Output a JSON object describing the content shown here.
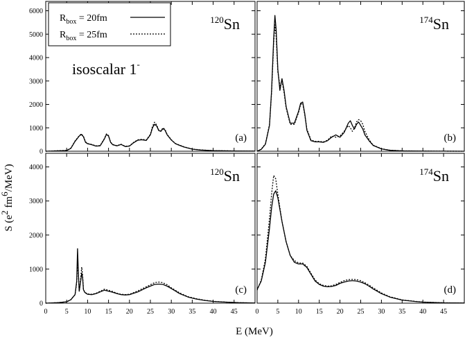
{
  "figure": {
    "xlabel": "E (MeV)",
    "ylabel_main": "S (e",
    "ylabel_sup1": "2",
    "ylabel_mid": " fm",
    "ylabel_sup2": "6",
    "ylabel_end": "/MeV)",
    "annotation": "isoscalar 1",
    "annotation_sup": "-",
    "legend": [
      {
        "prefix": "R",
        "sub": "box",
        "text": " = 20fm",
        "style": "solid"
      },
      {
        "prefix": "R",
        "sub": "box",
        "text": " = 25fm",
        "style": "dotted"
      }
    ],
    "colors": {
      "line": "#000000",
      "background": "#ffffff",
      "frame": "#000000"
    }
  },
  "chart_data": [
    {
      "type": "line",
      "panel_label": "(a)",
      "nucleus": {
        "mass": "120",
        "symbol": "Sn"
      },
      "xlim": [
        0,
        50
      ],
      "ylim": [
        0,
        6400
      ],
      "xticks": [
        "0",
        "5",
        "10",
        "15",
        "20",
        "25",
        "30",
        "35",
        "40",
        "45"
      ],
      "yticks": [
        "0",
        "1000",
        "2000",
        "3000",
        "4000",
        "5000",
        "6000"
      ],
      "show_xtick_labels": false,
      "series": [
        {
          "name": "R_box = 20fm",
          "style": "solid",
          "x": [
            0,
            5,
            6,
            7,
            8,
            8.5,
            9,
            9.5,
            10,
            11,
            12,
            13,
            14,
            14.5,
            15,
            15.5,
            16,
            17,
            18,
            19,
            20,
            21,
            22,
            23,
            24,
            25,
            25.5,
            26,
            26.5,
            27,
            27.5,
            28,
            28.5,
            29,
            30,
            31,
            32,
            33,
            35,
            37,
            40,
            45,
            50
          ],
          "y": [
            0,
            30,
            120,
            420,
            650,
            720,
            620,
            380,
            320,
            280,
            220,
            230,
            520,
            720,
            650,
            380,
            280,
            230,
            290,
            200,
            220,
            360,
            470,
            490,
            460,
            700,
            1000,
            1150,
            1080,
            880,
            850,
            970,
            900,
            700,
            480,
            320,
            250,
            180,
            90,
            50,
            25,
            10,
            5
          ]
        },
        {
          "name": "R_box = 25fm",
          "style": "dotted",
          "x": [
            0,
            5,
            6,
            7,
            8,
            8.5,
            9,
            9.5,
            10,
            11,
            12,
            13,
            14,
            14.5,
            15,
            15.5,
            16,
            17,
            18,
            19,
            20,
            21,
            22,
            23,
            24,
            25,
            25.5,
            26,
            26.5,
            27,
            27.5,
            28,
            28.5,
            29,
            30,
            31,
            32,
            33,
            35,
            37,
            40,
            45,
            50
          ],
          "y": [
            0,
            35,
            130,
            440,
            660,
            740,
            640,
            400,
            330,
            290,
            230,
            240,
            540,
            740,
            670,
            390,
            290,
            240,
            300,
            210,
            230,
            380,
            490,
            510,
            480,
            720,
            1060,
            1240,
            1120,
            900,
            860,
            1000,
            930,
            720,
            490,
            330,
            260,
            190,
            95,
            55,
            28,
            12,
            6
          ]
        }
      ]
    },
    {
      "type": "line",
      "panel_label": "(b)",
      "nucleus": {
        "mass": "174",
        "symbol": "Sn"
      },
      "xlim": [
        0,
        50
      ],
      "ylim": [
        0,
        6400
      ],
      "xticks": [
        "0",
        "5",
        "10",
        "15",
        "20",
        "25",
        "30",
        "35",
        "40",
        "45"
      ],
      "yticks": [],
      "show_xtick_labels": false,
      "series": [
        {
          "name": "R_box = 20fm",
          "style": "solid",
          "x": [
            0,
            1,
            2,
            3,
            3.5,
            4,
            4.3,
            4.6,
            5,
            5.5,
            6,
            6.5,
            7,
            8,
            9,
            10,
            10.5,
            11,
            11.5,
            12,
            13,
            14,
            15,
            16,
            17,
            18,
            19,
            20,
            21,
            22,
            22.5,
            23,
            23.5,
            24,
            24.5,
            25,
            25.5,
            26,
            27,
            28,
            30,
            32,
            35,
            40,
            45,
            50
          ],
          "y": [
            0,
            80,
            300,
            1100,
            2600,
            4800,
            5800,
            5200,
            3500,
            2600,
            3100,
            2600,
            1900,
            1200,
            1200,
            1700,
            2050,
            2100,
            1600,
            900,
            450,
            400,
            400,
            380,
            450,
            600,
            700,
            600,
            800,
            1200,
            1300,
            1100,
            950,
            1150,
            1250,
            1100,
            950,
            700,
            450,
            250,
            100,
            40,
            15,
            5,
            2,
            0
          ]
        },
        {
          "name": "R_box = 25fm",
          "style": "dotted",
          "x": [
            0,
            1,
            2,
            3,
            3.5,
            4,
            4.3,
            4.6,
            5,
            5.5,
            6,
            6.5,
            7,
            8,
            9,
            10,
            10.5,
            11,
            11.5,
            12,
            13,
            14,
            15,
            16,
            17,
            18,
            19,
            20,
            21,
            22,
            22.5,
            23,
            23.5,
            24,
            24.5,
            25,
            25.5,
            26,
            27,
            28,
            30,
            32,
            35,
            40,
            45,
            50
          ],
          "y": [
            0,
            90,
            320,
            1150,
            2500,
            4600,
            5400,
            4900,
            3400,
            2800,
            3000,
            2500,
            1850,
            1150,
            1150,
            1650,
            2000,
            2050,
            1550,
            950,
            480,
            420,
            420,
            400,
            470,
            650,
            600,
            650,
            850,
            1100,
            1000,
            850,
            1000,
            1250,
            1350,
            1300,
            1150,
            850,
            500,
            260,
            110,
            45,
            18,
            6,
            2,
            0
          ]
        }
      ]
    },
    {
      "type": "line",
      "panel_label": "(c)",
      "nucleus": {
        "mass": "120",
        "symbol": "Sn"
      },
      "xlim": [
        0,
        50
      ],
      "ylim": [
        0,
        4400
      ],
      "xticks": [
        "0",
        "5",
        "10",
        "15",
        "20",
        "25",
        "30",
        "35",
        "40",
        "45"
      ],
      "yticks": [
        "0",
        "1000",
        "2000",
        "3000",
        "4000"
      ],
      "show_xtick_labels": true,
      "series": [
        {
          "name": "R_box = 20fm",
          "style": "solid",
          "x": [
            0,
            3,
            5,
            6,
            7,
            7.4,
            7.6,
            7.8,
            8,
            8.3,
            8.6,
            8.8,
            9,
            9.3,
            9.6,
            10,
            11,
            12,
            13,
            14,
            15,
            16,
            17,
            18,
            19,
            20,
            22,
            24,
            26,
            27,
            28,
            29,
            30,
            32,
            34,
            36,
            38,
            40,
            43,
            46,
            50
          ],
          "y": [
            0,
            15,
            40,
            100,
            250,
            650,
            1600,
            900,
            350,
            600,
            880,
            750,
            400,
            320,
            290,
            260,
            250,
            280,
            330,
            380,
            350,
            320,
            280,
            250,
            240,
            250,
            330,
            450,
            550,
            560,
            550,
            500,
            430,
            280,
            180,
            120,
            80,
            50,
            30,
            15,
            5
          ]
        },
        {
          "name": "R_box = 25fm",
          "style": "dotted",
          "x": [
            0,
            3,
            5,
            6,
            7,
            7.4,
            7.6,
            7.8,
            8,
            8.3,
            8.6,
            8.8,
            9,
            9.3,
            9.6,
            10,
            11,
            12,
            13,
            14,
            15,
            16,
            17,
            18,
            19,
            20,
            22,
            24,
            26,
            27,
            28,
            29,
            30,
            32,
            34,
            36,
            38,
            40,
            43,
            46,
            50
          ],
          "y": [
            0,
            15,
            40,
            100,
            250,
            600,
            1200,
            850,
            350,
            650,
            1060,
            820,
            400,
            330,
            300,
            270,
            260,
            290,
            350,
            410,
            380,
            340,
            290,
            260,
            250,
            260,
            360,
            480,
            600,
            620,
            600,
            540,
            450,
            300,
            190,
            130,
            85,
            55,
            30,
            15,
            5
          ]
        }
      ]
    },
    {
      "type": "line",
      "panel_label": "(d)",
      "nucleus": {
        "mass": "174",
        "symbol": "Sn"
      },
      "xlim": [
        0,
        50
      ],
      "ylim": [
        0,
        4400
      ],
      "xticks": [
        "0",
        "5",
        "10",
        "15",
        "20",
        "25",
        "30",
        "35",
        "40",
        "45"
      ],
      "yticks": [],
      "show_xtick_labels": true,
      "series": [
        {
          "name": "R_box = 20fm",
          "style": "solid",
          "x": [
            0,
            1,
            2,
            3,
            3.5,
            4,
            4.5,
            5,
            6,
            7,
            8,
            9,
            10,
            11,
            12,
            13,
            14,
            15,
            16,
            17,
            18,
            19,
            20,
            21,
            22,
            23,
            24,
            25,
            26,
            27,
            28,
            30,
            32,
            35,
            38,
            40,
            45,
            50
          ],
          "y": [
            400,
            650,
            1200,
            2200,
            2800,
            3200,
            3300,
            3100,
            2400,
            1800,
            1400,
            1200,
            1150,
            1150,
            1050,
            850,
            650,
            550,
            500,
            480,
            490,
            520,
            580,
            620,
            650,
            660,
            650,
            620,
            570,
            500,
            420,
            280,
            180,
            90,
            50,
            30,
            10,
            5
          ]
        },
        {
          "name": "R_box = 25fm",
          "style": "dotted",
          "x": [
            0,
            1,
            2,
            3,
            3.5,
            4,
            4.5,
            5,
            6,
            7,
            8,
            9,
            10,
            11,
            12,
            13,
            14,
            15,
            16,
            17,
            18,
            19,
            20,
            21,
            22,
            23,
            24,
            25,
            26,
            27,
            28,
            30,
            32,
            35,
            38,
            40,
            45,
            50
          ],
          "y": [
            380,
            680,
            1300,
            2500,
            3200,
            3750,
            3650,
            3200,
            2400,
            1800,
            1400,
            1250,
            1180,
            1180,
            1080,
            880,
            680,
            570,
            520,
            500,
            510,
            550,
            610,
            660,
            690,
            700,
            690,
            660,
            600,
            530,
            450,
            300,
            190,
            95,
            55,
            32,
            11,
            5
          ]
        }
      ]
    }
  ]
}
